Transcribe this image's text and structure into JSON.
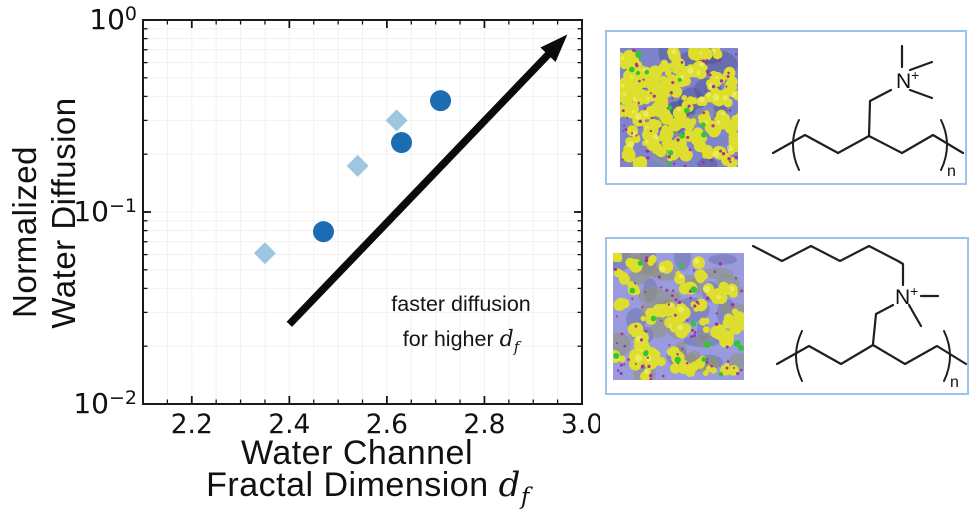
{
  "chart_data": {
    "type": "scatter",
    "xlabel_line1": "Water Channel",
    "xlabel_line2_prefix": "Fractal Dimension ",
    "xlabel_math": "d",
    "xlabel_math_sub": "f",
    "ylabel_line1": "Normalized",
    "ylabel_line2": "Water Diffusion",
    "x_scale": "linear",
    "y_scale": "log",
    "xlim": [
      2.1,
      3.0
    ],
    "ylim": [
      0.01,
      1.0
    ],
    "x_ticks": [
      2.2,
      2.4,
      2.6,
      2.8,
      3.0
    ],
    "x_tick_labels": [
      "2.2",
      "2.4",
      "2.6",
      "2.8",
      "3.0"
    ],
    "x_minor_step": 0.05,
    "y_tick_base": "10",
    "y_tick_exponents": [
      0,
      -1,
      -2
    ],
    "grid": "minor, very faint",
    "legend": "none",
    "series": [
      {
        "name": "light-blue-diamonds",
        "marker": "diamond",
        "color": "#9EC6E0",
        "points": [
          {
            "x": 2.35,
            "y": 0.061
          },
          {
            "x": 2.54,
            "y": 0.174
          },
          {
            "x": 2.62,
            "y": 0.3
          }
        ]
      },
      {
        "name": "dark-blue-circles",
        "marker": "circle",
        "color": "#1B6CB3",
        "points": [
          {
            "x": 2.47,
            "y": 0.079
          },
          {
            "x": 2.63,
            "y": 0.23
          },
          {
            "x": 2.71,
            "y": 0.38
          }
        ]
      }
    ],
    "annotation": {
      "line1": "faster diffusion",
      "line2_prefix": "for higher ",
      "line2_math": "d",
      "line2_math_sub": "f",
      "x": 2.752,
      "y": 0.028
    },
    "arrow": {
      "x1": 2.4,
      "y1": 0.026,
      "x2": 2.97,
      "y2": 0.84,
      "color": "#0a0a0a"
    }
  },
  "panels": [
    {
      "border_color": "#9dc3e6",
      "molecule": {
        "nitrogen": "N",
        "charge": "+",
        "repeat_subscript": "n"
      },
      "sim": {
        "water_density": 0.55,
        "gray_patches": 10,
        "magenta_dots": 60,
        "green_dots": 12,
        "colors": {
          "background": "#7f83cc",
          "shadow": "#3f4480",
          "gray": "#8d93a6",
          "water": "#dede2e",
          "water_highlight": "#f4f47e",
          "magenta": "#a32c9c",
          "green": "#2ec832"
        }
      }
    },
    {
      "border_color": "#9dc3e6",
      "molecule": {
        "nitrogen": "N",
        "charge": "+",
        "repeat_subscript": "n"
      },
      "sim": {
        "water_density": 0.28,
        "gray_patches": 30,
        "magenta_dots": 70,
        "green_dots": 15,
        "colors": {
          "background": "#999bde",
          "shadow": "#565c96",
          "gray": "#8f937e",
          "water": "#dede2e",
          "water_highlight": "#f4f47e",
          "magenta": "#a32c9c",
          "green": "#2ec832"
        }
      }
    }
  ]
}
